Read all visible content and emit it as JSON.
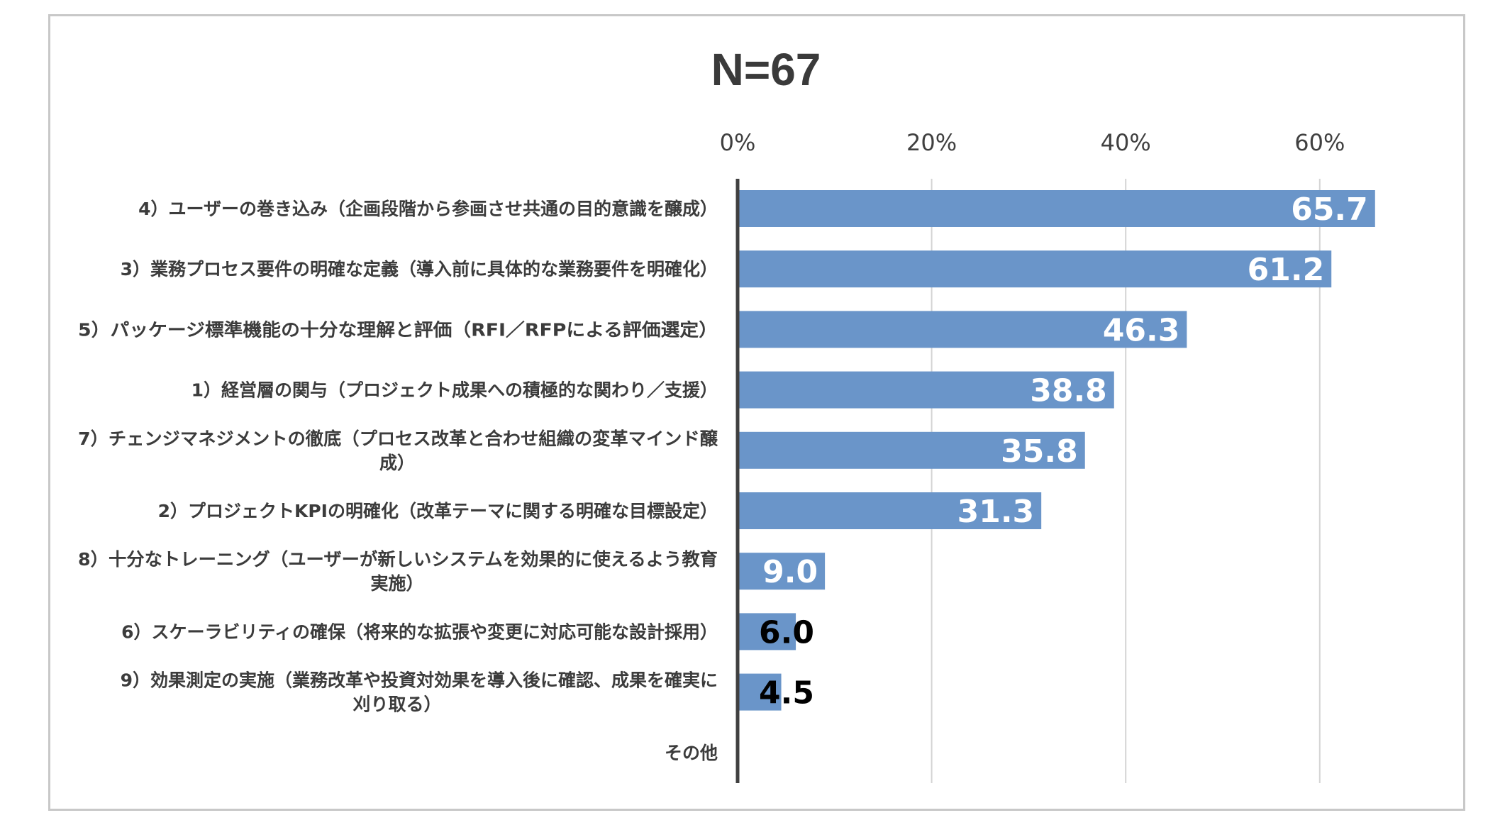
{
  "chart_data": {
    "type": "bar",
    "orientation": "horizontal",
    "title": "N=67",
    "xlabel": "",
    "ylabel": "",
    "xlim": [
      0,
      70
    ],
    "x_ticks": [
      {
        "value": 0,
        "label": "0%"
      },
      {
        "value": 20,
        "label": "20%"
      },
      {
        "value": 40,
        "label": "40%"
      },
      {
        "value": 60,
        "label": "60%"
      }
    ],
    "grid": true,
    "legend": "none",
    "bar_color": "#6a95c9",
    "axis_color": "#404040",
    "categories": [
      {
        "lines": [
          "4）ユーザーの巻き込み（企画段階から参画させ共通の目的意識を醸成）"
        ]
      },
      {
        "lines": [
          "3）業務プロセス要件の明確な定義（導入前に具体的な業務要件を明確化）"
        ]
      },
      {
        "lines": [
          "5）パッケージ標準機能の十分な理解と評価（RFI／RFPによる評価選定）"
        ]
      },
      {
        "lines": [
          "1）経営層の関与（プロジェクト成果への積極的な関わり／支援）"
        ]
      },
      {
        "lines": [
          "7）チェンジマネジメントの徹底（プロセス改革と合わせ組織の変革マインド醸",
          "成）"
        ]
      },
      {
        "lines": [
          "2）プロジェクトKPIの明確化（改革テーマに関する明確な目標設定）"
        ]
      },
      {
        "lines": [
          "8）十分なトレーニング（ユーザーが新しいシステムを効果的に使えるよう教育",
          "実施）"
        ]
      },
      {
        "lines": [
          "6）スケーラビリティの確保（将来的な拡張や変更に対応可能な設計採用）"
        ]
      },
      {
        "lines": [
          "9）効果測定の実施（業務改革や投資対効果を導入後に確認、成果を確実に",
          "刈り取る）"
        ]
      },
      {
        "lines": [
          "その他"
        ]
      }
    ],
    "values": [
      65.7,
      61.2,
      46.3,
      38.8,
      35.8,
      31.3,
      9.0,
      6.0,
      4.5,
      null
    ],
    "data_labels": [
      "65.7",
      "61.2",
      "46.3",
      "38.8",
      "35.8",
      "31.3",
      "9.0",
      "6.0",
      "4.5",
      ""
    ]
  }
}
